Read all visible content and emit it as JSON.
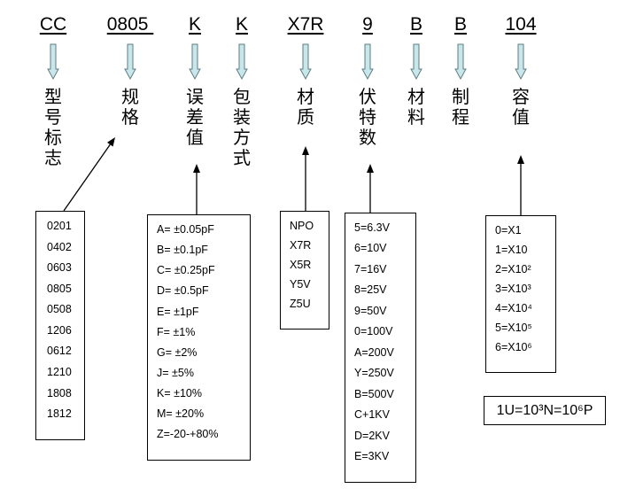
{
  "fields": [
    {
      "code": "CC",
      "label": "型号标志"
    },
    {
      "code": "0805 ",
      "label": "规格"
    },
    {
      "code": "K",
      "label": "误差值"
    },
    {
      "code": "K",
      "label": "包装方式"
    },
    {
      "code": "X7R",
      "label": "材质"
    },
    {
      "code": "9",
      "label": "伏特数"
    },
    {
      "code": "B",
      "label": "材料"
    },
    {
      "code": "B",
      "label": "制程"
    },
    {
      "code": "104",
      "label": "容值"
    }
  ],
  "boxes": [
    {
      "name": "size-list",
      "items": [
        "0201",
        "0402",
        "0603",
        "0805",
        "0508",
        "1206",
        "0612",
        "1210",
        "1808",
        "1812"
      ]
    },
    {
      "name": "tolerance-list",
      "items": [
        "A= ±0.05pF",
        "B= ±0.1pF",
        "C= ±0.25pF",
        "D= ±0.5pF",
        "E= ±1pF",
        "F= ±1%",
        "G= ±2%",
        "J= ±5%",
        "K= ±10%",
        "M= ±20%",
        "Z=-20-+80%"
      ]
    },
    {
      "name": "material-list",
      "items": [
        "NPO",
        "X7R",
        "X5R",
        "Y5V",
        "Z5U"
      ]
    },
    {
      "name": "voltage-list",
      "items": [
        "5=6.3V",
        "6=10V",
        "7=16V",
        "8=25V",
        "9=50V",
        "0=100V",
        "A=200V",
        "Y=250V",
        "B=500V",
        "C+1KV",
        "D=2KV",
        "E=3KV"
      ]
    },
    {
      "name": "capacitance-multiplier-list",
      "items": [
        "0=X1",
        "1=X10",
        "2=X10²",
        "3=X10³",
        "4=X10⁴",
        "5=X10⁵",
        "6=X10⁶"
      ]
    }
  ],
  "unit_note": "1U=10³N=10⁶P",
  "colors": {
    "down_arrow_fill": "#c9e6ea",
    "down_arrow_stroke": "#5a7d82"
  }
}
